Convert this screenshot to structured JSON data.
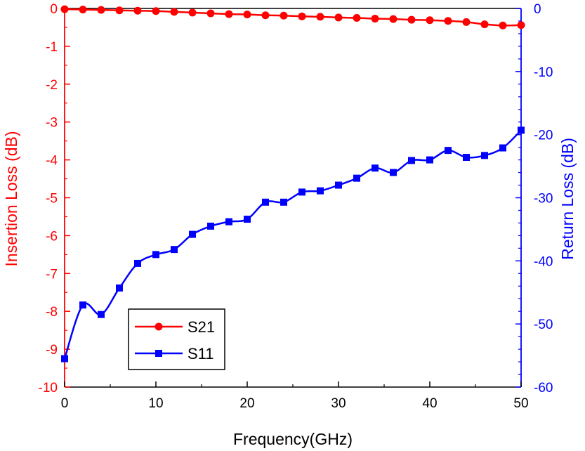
{
  "chart_data": {
    "type": "line",
    "xlabel": "Frequency(GHz)",
    "ylabel_left": "Insertion Loss (dB)",
    "ylabel_right": "Return Loss (dB)",
    "xlim": [
      0,
      50
    ],
    "ylim_left": [
      -10,
      0
    ],
    "ylim_right": [
      -60,
      0
    ],
    "x_ticks": [
      0,
      10,
      20,
      30,
      40,
      50
    ],
    "y_ticks_left": [
      0,
      -1,
      -2,
      -3,
      -4,
      -5,
      -6,
      -7,
      -8,
      -9,
      -10
    ],
    "y_ticks_right": [
      0,
      -10,
      -20,
      -30,
      -40,
      -50,
      -60
    ],
    "grid": false,
    "legend_position": "bottom-left",
    "colors": {
      "left_axis": "#ff0000",
      "right_axis": "#0000ff"
    },
    "series": [
      {
        "name": "S21",
        "axis": "left",
        "color": "#ff0000",
        "marker": "circle",
        "x": [
          0,
          2,
          4,
          6,
          8,
          10,
          12,
          14,
          16,
          18,
          20,
          22,
          24,
          26,
          28,
          30,
          32,
          34,
          36,
          38,
          40,
          42,
          44,
          46,
          48,
          50
        ],
        "y": [
          -0.02,
          -0.03,
          -0.04,
          -0.05,
          -0.06,
          -0.07,
          -0.09,
          -0.11,
          -0.13,
          -0.15,
          -0.16,
          -0.18,
          -0.19,
          -0.21,
          -0.22,
          -0.24,
          -0.25,
          -0.27,
          -0.28,
          -0.3,
          -0.31,
          -0.33,
          -0.36,
          -0.42,
          -0.45,
          -0.44
        ]
      },
      {
        "name": "S11",
        "axis": "right",
        "color": "#0000ff",
        "marker": "square",
        "x": [
          0,
          2,
          4,
          6,
          8,
          10,
          12,
          14,
          16,
          18,
          20,
          22,
          24,
          26,
          28,
          30,
          32,
          34,
          36,
          38,
          40,
          42,
          44,
          46,
          48,
          50
        ],
        "y": [
          -55.5,
          -47.0,
          -48.5,
          -44.3,
          -40.4,
          -39.0,
          -38.2,
          -35.8,
          -34.5,
          -33.8,
          -33.4,
          -30.7,
          -30.7,
          -29.1,
          -28.9,
          -28.0,
          -26.9,
          -25.3,
          -26.0,
          -24.1,
          -24.0,
          -22.5,
          -23.6,
          -23.3,
          -22.1,
          -19.3
        ]
      }
    ]
  }
}
